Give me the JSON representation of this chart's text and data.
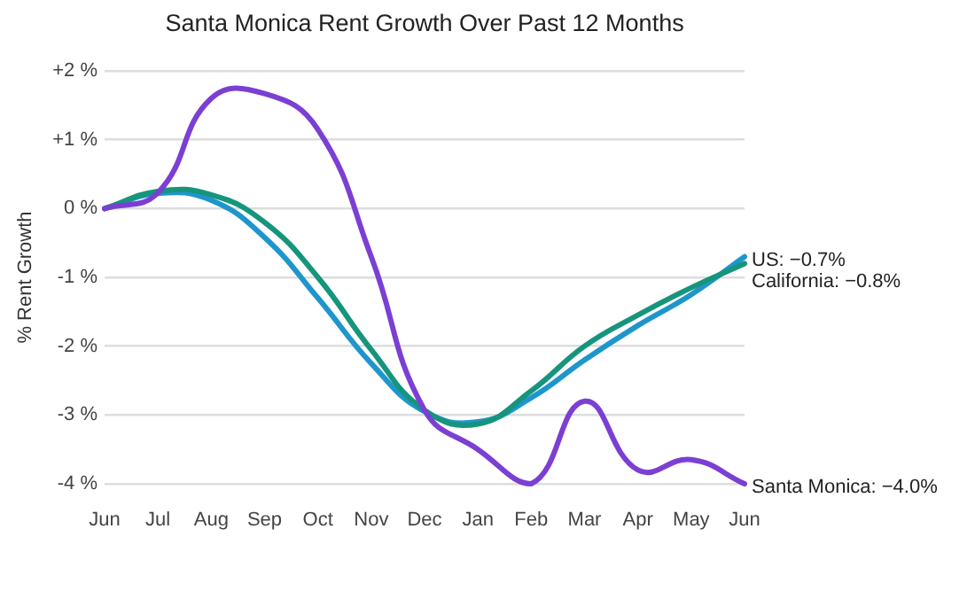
{
  "chart_data": {
    "type": "line",
    "title": "Santa Monica Rent Growth Over Past 12 Months",
    "ylabel": "% Rent Growth",
    "categories": [
      "Jun",
      "Jul",
      "Aug",
      "Sep",
      "Oct",
      "Nov",
      "Dec",
      "Jan",
      "Feb",
      "Mar",
      "Apr",
      "May",
      "Jun"
    ],
    "series": [
      {
        "color": "#1e96cc",
        "values": [
          0,
          0.22,
          0.12,
          -0.42,
          -1.3,
          -2.25,
          -2.95,
          -3.1,
          -2.75,
          -2.2,
          -1.7,
          -1.25,
          -0.7
        ]
      },
      {
        "color": "#16957c",
        "values": [
          0,
          0.25,
          0.2,
          -0.2,
          -1.0,
          -2.05,
          -2.93,
          -3.13,
          -2.65,
          -2.0,
          -1.55,
          -1.15,
          -0.8
        ]
      },
      {
        "color": "#7b3fd4",
        "values": [
          0,
          0.23,
          1.6,
          1.67,
          1.15,
          -0.7,
          -2.93,
          -3.5,
          -4.0,
          -2.8,
          -3.8,
          -3.65,
          -4.0
        ]
      }
    ],
    "ylim": [
      -4,
      2
    ],
    "yticks": [
      {
        "value": 2,
        "label": "+2 %"
      },
      {
        "value": 1,
        "label": "+1 %"
      },
      {
        "value": 0,
        "label": "0 %"
      },
      {
        "value": -1,
        "label": "-1 %"
      },
      {
        "value": -2,
        "label": "-2 %"
      },
      {
        "value": -3,
        "label": "-3 %"
      },
      {
        "value": -4,
        "label": "-4 %"
      }
    ],
    "annotations": [
      "US: −0.7%",
      "California: −0.8%",
      "Santa Monica: −4.0%"
    ],
    "grid": "y",
    "marker": "none",
    "line_style": "solid"
  }
}
